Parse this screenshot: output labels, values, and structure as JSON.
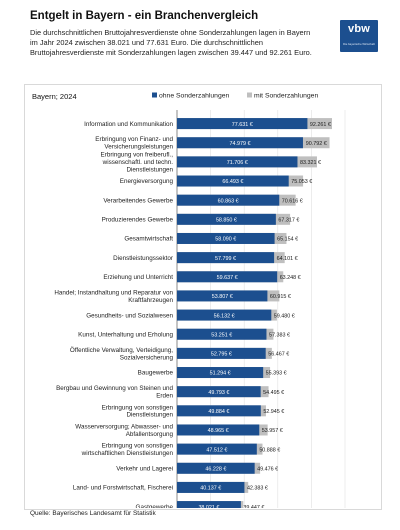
{
  "header": {
    "title": "Entgelt in Bayern  - ein Branchenvergleich",
    "subtitle": "Die durchschnittlichen Bruttojahresverdienste ohne Sonderzahlungen lagen in Bayern im Jahr 2024 zwischen 38.021 und 77.631 Euro. Die durchschnittlichen Bruttojahresverdienste mit Sonderzahlungen lagen zwischen 39.447 und 92.261 Euro."
  },
  "logo": {
    "text": "vbw",
    "subtext": "Die bayerische Wirtschaft"
  },
  "footer": {
    "source": "Quelle: Bayerisches Landesamt für Statistik"
  },
  "colors": {
    "ohne": "#1c4f8f",
    "mit": "#bfbfbf",
    "grid": "#e0e0e0",
    "axis": "#595959"
  },
  "chart_data": {
    "type": "bar",
    "orientation": "horizontal",
    "stacked": false,
    "overlapping": true,
    "title": "Bayern; 2024",
    "legend_position": "top",
    "xlim": [
      0,
      100000
    ],
    "xticks": [
      "0",
      "20.000",
      "40.000",
      "60.000",
      "80.000",
      "100.000"
    ],
    "grid": true,
    "categories": [
      "Information und Kommunikation",
      "Erbringung von Finanz- und Versicherungsleistungen",
      "Erbringung von freiberufl., wissenschaftl. und techn. Dienstleistungen",
      "Energieversorgung",
      "Verarbeitendes Gewerbe",
      "Produzierendes Gewerbe",
      "Gesamtwirtschaft",
      "Dienstleistungssektor",
      "Erziehung und Unterricht",
      "Handel; Instandhaltung und Reparatur von Kraftfahrzeugen",
      "Gesundheits- und Sozialwesen",
      "Kunst, Unterhaltung und Erholung",
      "Öffentliche Verwaltung, Verteidigung, Sozialversicherung",
      "Baugewerbe",
      "Bergbau und Gewinnung von Steinen und Erden",
      "Erbringung von sonstigen Dienstleistungen",
      "Wasserversorgung; Abwasser- und Abfallentsorgung",
      "Erbringung von sonstigen wirtschaftlichen Dienstleistungen",
      "Verkehr und Lagerei",
      "Land- und Forstwirtschaft, Fischerei",
      "Gastgewerbe"
    ],
    "series": [
      {
        "name": "ohne Sonderzahlungen",
        "values": [
          77631,
          74979,
          71706,
          66493,
          60863,
          58850,
          58090,
          57799,
          59637,
          53807,
          56132,
          53251,
          52795,
          51294,
          49793,
          49884,
          48965,
          47512,
          46228,
          40137,
          38021
        ],
        "labels": [
          "77.631 €",
          "74.979 €",
          "71.706 €",
          "66.493 €",
          "60.863 €",
          "58.850 €",
          "58.090 €",
          "57.799 €",
          "59.637 €",
          "53.807 €",
          "56.132 €",
          "53.251 €",
          "52.795 €",
          "51.294 €",
          "49.793 €",
          "49.884 €",
          "48.965 €",
          "47.512 €",
          "46.228 €",
          "40.137 €",
          "38.021 €"
        ]
      },
      {
        "name": "mit Sonderzahlungen",
        "values": [
          92261,
          90792,
          83321,
          75053,
          70616,
          67317,
          65154,
          64101,
          63248,
          60915,
          59480,
          57383,
          56467,
          55393,
          54495,
          52945,
          53957,
          50888,
          49476,
          42383,
          39447
        ],
        "labels": [
          "92.261 €",
          "90.792 €",
          "83.321 €",
          "75.053 €",
          "70.616 €",
          "67.317 €",
          "65.154 €",
          "64.101 €",
          "63.248 €",
          "60.915 €",
          "59.480 €",
          "57.383 €",
          "56.467 €",
          "55.393 €",
          "54.495 €",
          "52.945 €",
          "53.957 €",
          "50.888 €",
          "49.476 €",
          "42.383 €",
          "39.447 €"
        ]
      }
    ]
  }
}
